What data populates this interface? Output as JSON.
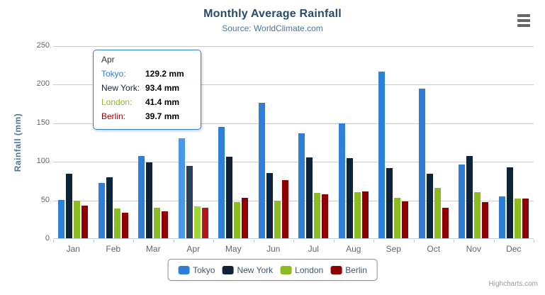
{
  "header": {
    "title": "Monthly Average Rainfall",
    "subtitle": "Source: WorldClimate.com",
    "menu_icon": "hamburger-menu-icon"
  },
  "credits": "Highcharts.com",
  "colors": {
    "title": "#274b6d",
    "subtitle": "#4d759e",
    "axis_labels": "#666666",
    "axis_line": "#c0d0e0",
    "gridline": "#cccccc",
    "legend_text": "#3e576f",
    "legend_border": "#909090",
    "tooltip_border": "#2f7ed8"
  },
  "chart_data": {
    "type": "bar",
    "title": "Monthly Average Rainfall",
    "subtitle": "Source: WorldClimate.com",
    "xlabel": "",
    "ylabel": "Rainfall (mm)",
    "ylim": [
      0,
      250
    ],
    "yticks": [
      0,
      50,
      100,
      150,
      200,
      250
    ],
    "grid": true,
    "legend_position": "bottom",
    "categories": [
      "Jan",
      "Feb",
      "Mar",
      "Apr",
      "May",
      "Jun",
      "Jul",
      "Aug",
      "Sep",
      "Oct",
      "Nov",
      "Dec"
    ],
    "series": [
      {
        "name": "Tokyo",
        "color": "#2f7ed8",
        "hover_color": "#4b97ea",
        "values": [
          49.9,
          71.5,
          106.4,
          129.2,
          144.0,
          176.0,
          135.6,
          148.5,
          216.4,
          194.1,
          95.6,
          54.4
        ]
      },
      {
        "name": "New York",
        "color": "#0d233a",
        "hover_color": "#2a4056",
        "values": [
          83.6,
          78.8,
          98.5,
          93.4,
          106.0,
          84.5,
          105.0,
          104.3,
          91.2,
          83.5,
          106.6,
          92.3
        ]
      },
      {
        "name": "London",
        "color": "#8bbc21",
        "hover_color": "#a1d438",
        "values": [
          48.9,
          38.8,
          39.3,
          41.4,
          47.0,
          48.3,
          59.0,
          59.6,
          52.4,
          65.2,
          59.3,
          51.2
        ]
      },
      {
        "name": "Berlin",
        "color": "#910000",
        "hover_color": "#b31717",
        "values": [
          42.4,
          33.2,
          34.5,
          39.7,
          52.6,
          75.5,
          57.4,
          60.4,
          47.6,
          39.1,
          46.8,
          51.1
        ]
      }
    ],
    "hover_category": "Apr",
    "hover_category_index": 3
  },
  "tooltip": {
    "header": "Apr",
    "border_color": "#2f7ed8",
    "rows": [
      {
        "label": "Tokyo:",
        "color": "#2f7ed8",
        "value": "129.2 mm"
      },
      {
        "label": "New York:",
        "color": "#0d233a",
        "value": "93.4 mm"
      },
      {
        "label": "London:",
        "color": "#8bbc21",
        "value": "41.4 mm"
      },
      {
        "label": "Berlin:",
        "color": "#910000",
        "value": "39.7 mm"
      }
    ]
  }
}
